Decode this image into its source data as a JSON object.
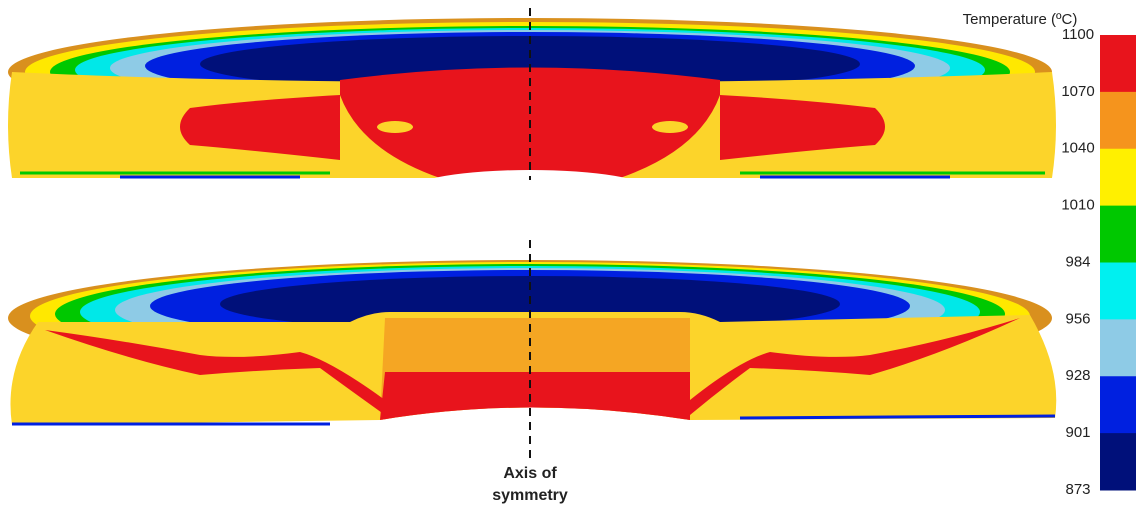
{
  "figure": {
    "axis_label": [
      "Axis of",
      "symmetry"
    ],
    "colorbar": {
      "title": "Temperature (ºC)",
      "ticks": [
        1100,
        1070,
        1040,
        1010,
        984,
        956,
        928,
        901,
        873
      ],
      "colors": [
        "#e8141c",
        "#f5941d",
        "#fff000",
        "#00c800",
        "#00f0f0",
        "#8ecbe6",
        "#0020e0",
        "#00107a"
      ]
    }
  }
}
